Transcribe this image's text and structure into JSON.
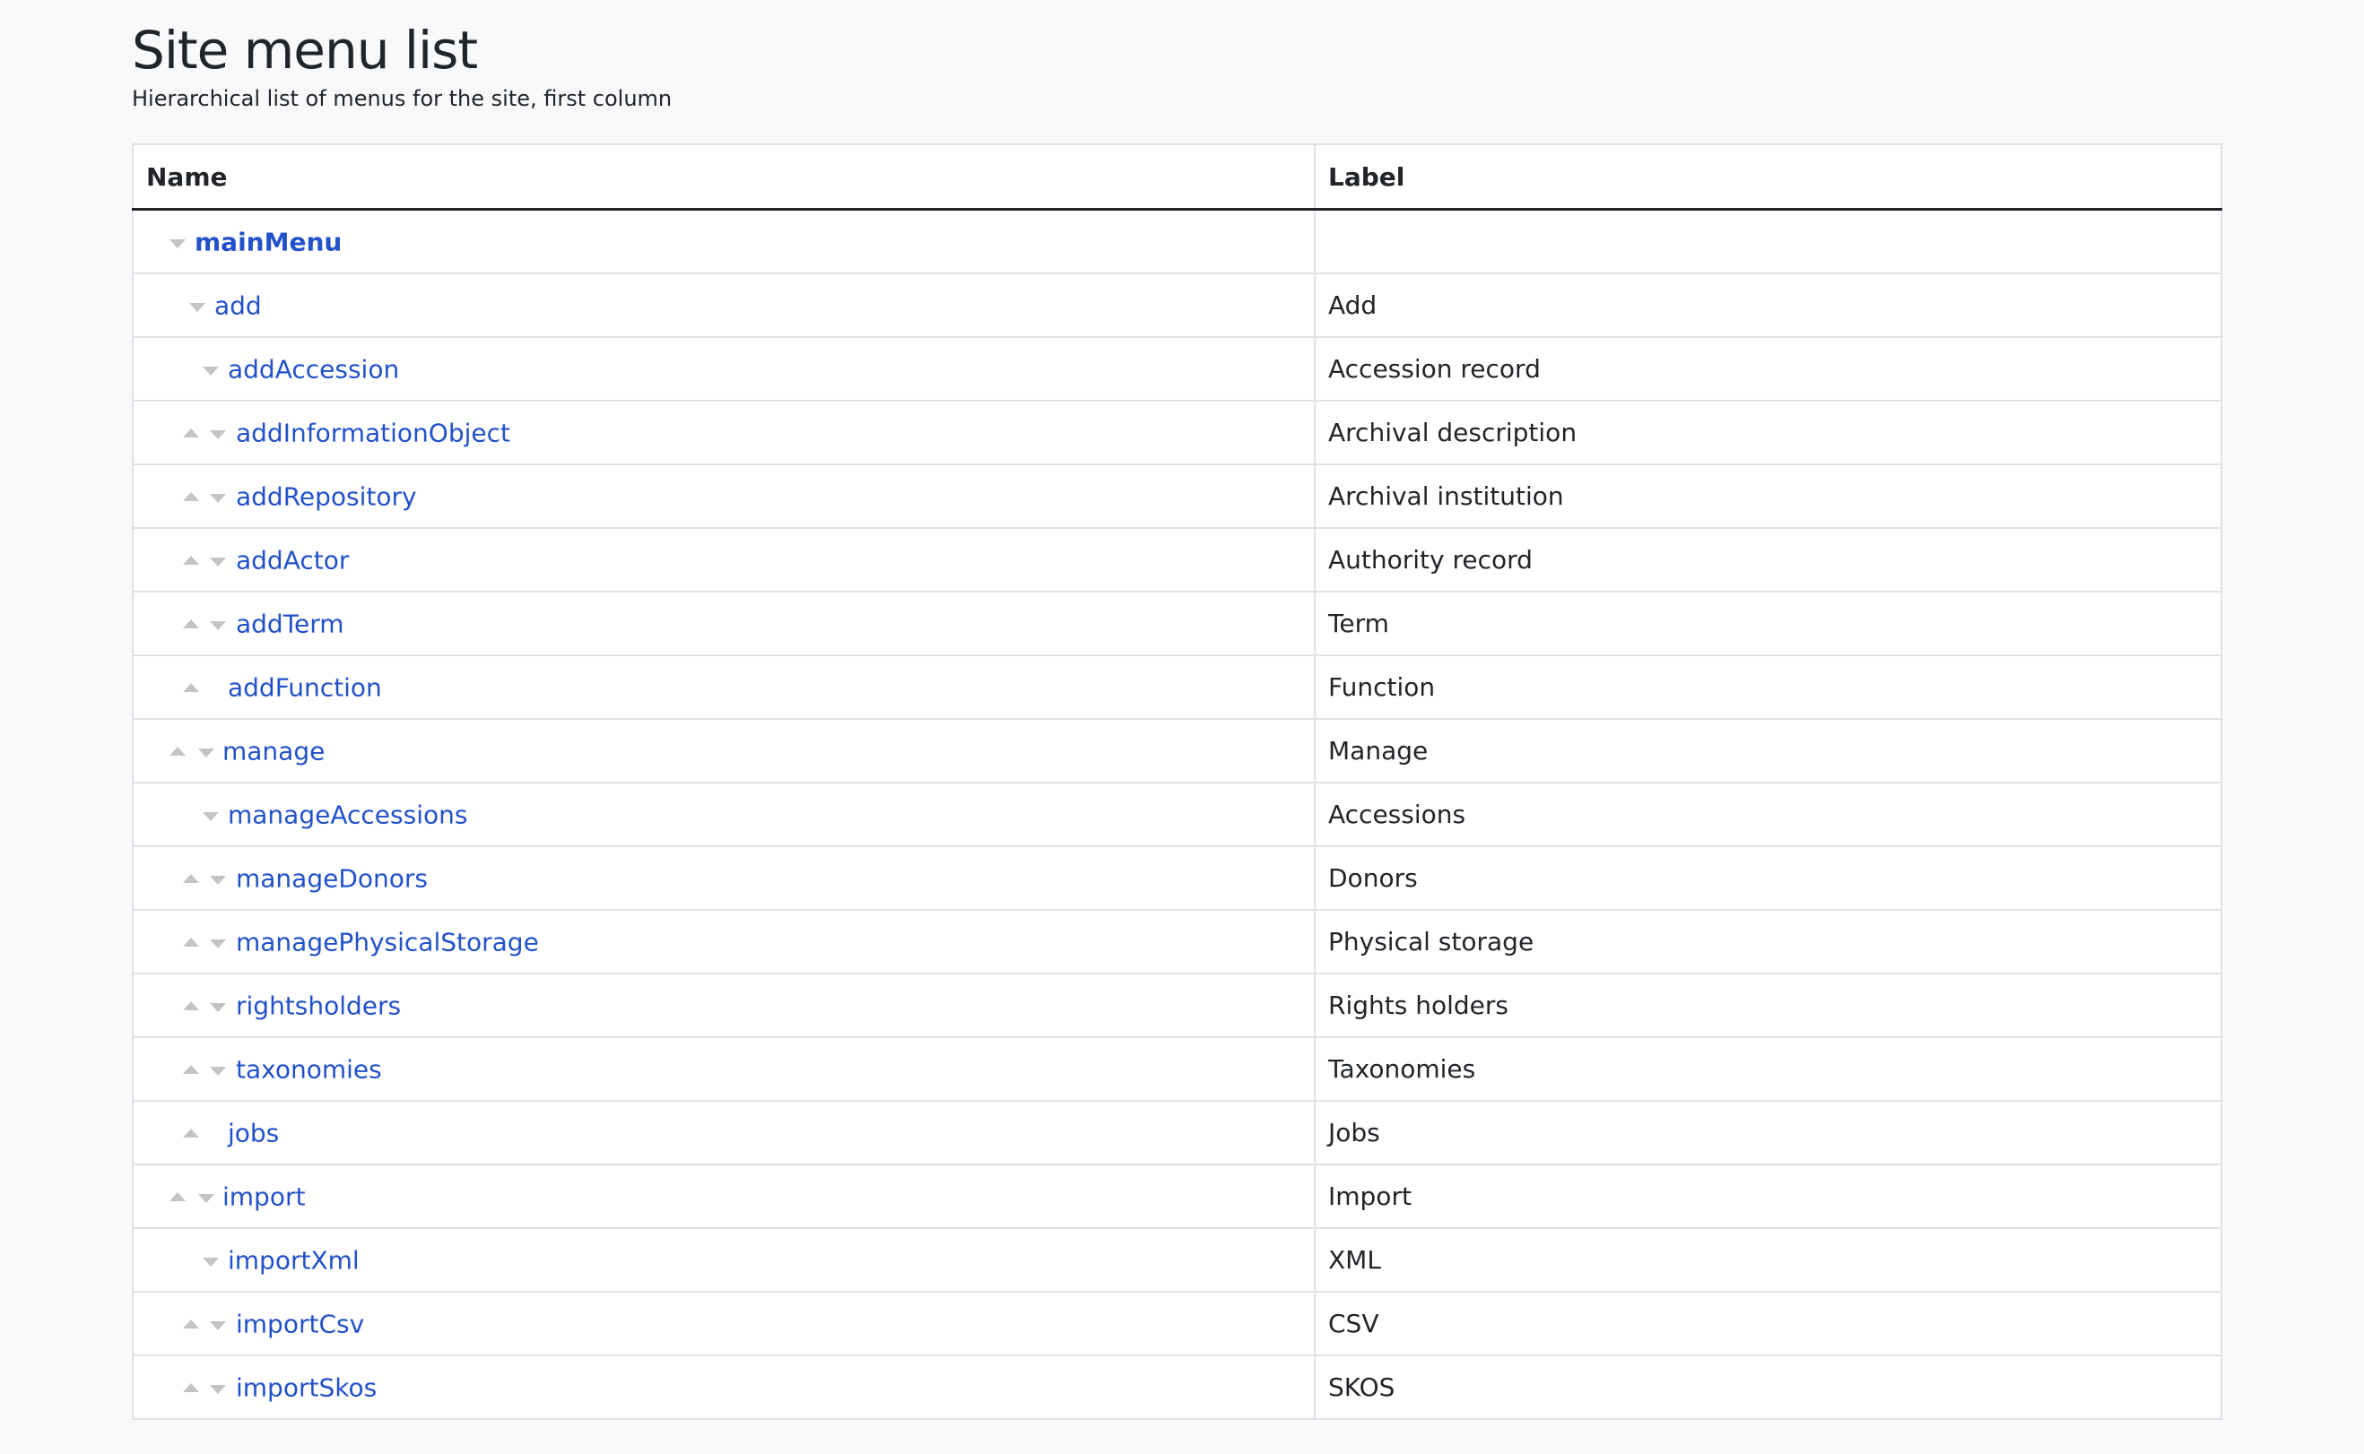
{
  "page": {
    "title": "Site menu list",
    "subtitle": "Hierarchical list of menus for the site, first column"
  },
  "table": {
    "columns": [
      "Name",
      "Label"
    ],
    "rows": [
      {
        "name": "mainMenu",
        "label": "",
        "depth": 0,
        "up": false,
        "down": true
      },
      {
        "name": "add",
        "label": "Add",
        "depth": 1,
        "up": false,
        "down": true
      },
      {
        "name": "addAccession",
        "label": "Accession record",
        "depth": 2,
        "up": false,
        "down": true
      },
      {
        "name": "addInformationObject",
        "label": "Archival description",
        "depth": 2,
        "up": true,
        "down": true
      },
      {
        "name": "addRepository",
        "label": "Archival institution",
        "depth": 2,
        "up": true,
        "down": true
      },
      {
        "name": "addActor",
        "label": "Authority record",
        "depth": 2,
        "up": true,
        "down": true
      },
      {
        "name": "addTerm",
        "label": "Term",
        "depth": 2,
        "up": true,
        "down": true
      },
      {
        "name": "addFunction",
        "label": "Function",
        "depth": 2,
        "up": true,
        "down": false
      },
      {
        "name": "manage",
        "label": "Manage",
        "depth": 1,
        "up": true,
        "down": true
      },
      {
        "name": "manageAccessions",
        "label": "Accessions",
        "depth": 2,
        "up": false,
        "down": true
      },
      {
        "name": "manageDonors",
        "label": "Donors",
        "depth": 2,
        "up": true,
        "down": true
      },
      {
        "name": "managePhysicalStorage",
        "label": "Physical storage",
        "depth": 2,
        "up": true,
        "down": true
      },
      {
        "name": "rightsholders",
        "label": "Rights holders",
        "depth": 2,
        "up": true,
        "down": true
      },
      {
        "name": "taxonomies",
        "label": "Taxonomies",
        "depth": 2,
        "up": true,
        "down": true
      },
      {
        "name": "jobs",
        "label": "Jobs",
        "depth": 2,
        "up": true,
        "down": false
      },
      {
        "name": "import",
        "label": "Import",
        "depth": 1,
        "up": true,
        "down": true
      },
      {
        "name": "importXml",
        "label": "XML",
        "depth": 2,
        "up": false,
        "down": true
      },
      {
        "name": "importCsv",
        "label": "CSV",
        "depth": 2,
        "up": true,
        "down": true
      },
      {
        "name": "importSkos",
        "label": "SKOS",
        "depth": 2,
        "up": true,
        "down": true
      }
    ]
  },
  "colors": {
    "link": "#2251c9",
    "arrow": "#c4c4c4",
    "text": "#212529",
    "background": "#f8f9fa"
  }
}
